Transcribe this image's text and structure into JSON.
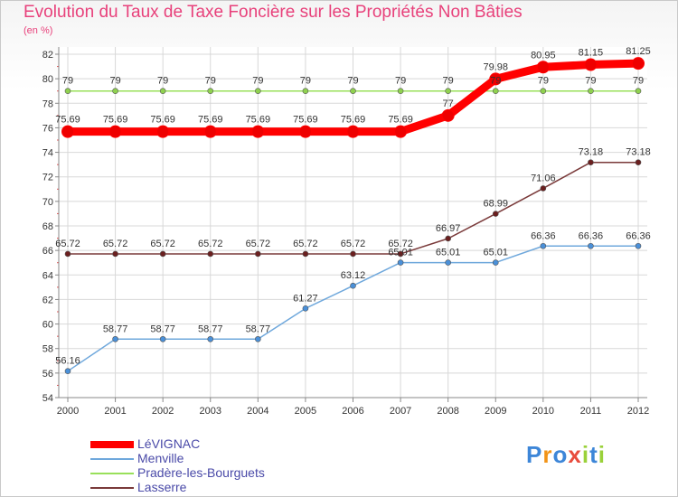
{
  "header": {
    "title": "Evolution du Taux de Taxe Foncière sur les Propriétés Non Bâties",
    "unit": "(en %)"
  },
  "brand": {
    "logo_text": "Proxiti"
  },
  "chart_data": {
    "type": "line",
    "title": "Evolution du Taux de Taxe Foncière sur les Propriétés Non Bâties",
    "ylabel": "(en %)",
    "xlabel": "",
    "x": [
      "2000",
      "2001",
      "2002",
      "2003",
      "2004",
      "2005",
      "2006",
      "2007",
      "2008",
      "2009",
      "2010",
      "2011",
      "2012"
    ],
    "ylim": [
      54,
      82
    ],
    "yticks": [
      "54",
      "56",
      "58",
      "60",
      "62",
      "64",
      "66",
      "68",
      "70",
      "72",
      "74",
      "76",
      "78",
      "80",
      "82"
    ],
    "grid": true,
    "legend_position": "bottom-left",
    "series": [
      {
        "name": "LéVIGNAC",
        "color": "#ff0000",
        "values": [
          75.69,
          75.69,
          75.69,
          75.69,
          75.69,
          75.69,
          75.69,
          75.69,
          77,
          79.98,
          80.95,
          81.15,
          81.25
        ],
        "labels": [
          "75.69",
          "75.69",
          "75.69",
          "75.69",
          "75.69",
          "75.69",
          "75.69",
          "75.69",
          "77",
          "79.98",
          "80.95",
          "81.15",
          "81.25"
        ]
      },
      {
        "name": "Menville",
        "color": "#6fa8dc",
        "values": [
          56.16,
          58.77,
          58.77,
          58.77,
          58.77,
          61.27,
          63.12,
          65.01,
          65.01,
          65.01,
          66.36,
          66.36,
          66.36
        ],
        "labels": [
          "56.16",
          "58.77",
          "58.77",
          "58.77",
          "58.77",
          "61.27",
          "63.12",
          "65.01",
          "65.01",
          "65.01",
          "66.36",
          "66.36",
          "66.36"
        ]
      },
      {
        "name": "Pradère-les-Bourguets",
        "color": "#99e05a",
        "values": [
          79,
          79,
          79,
          79,
          79,
          79,
          79,
          79,
          79,
          79,
          79,
          79,
          79
        ],
        "labels": [
          "79",
          "79",
          "79",
          "79",
          "79",
          "79",
          "79",
          "79",
          "79",
          "79",
          "79",
          "79",
          "79"
        ]
      },
      {
        "name": "Lasserre",
        "color": "#7a3a3a",
        "values": [
          65.72,
          65.72,
          65.72,
          65.72,
          65.72,
          65.72,
          65.72,
          65.72,
          66.97,
          68.99,
          71.06,
          73.18,
          73.18
        ],
        "labels": [
          "65.72",
          "65.72",
          "65.72",
          "65.72",
          "65.72",
          "65.72",
          "65.72",
          "65.72",
          "66.97",
          "68.99",
          "71.06",
          "73.18",
          "73.18"
        ]
      }
    ]
  }
}
